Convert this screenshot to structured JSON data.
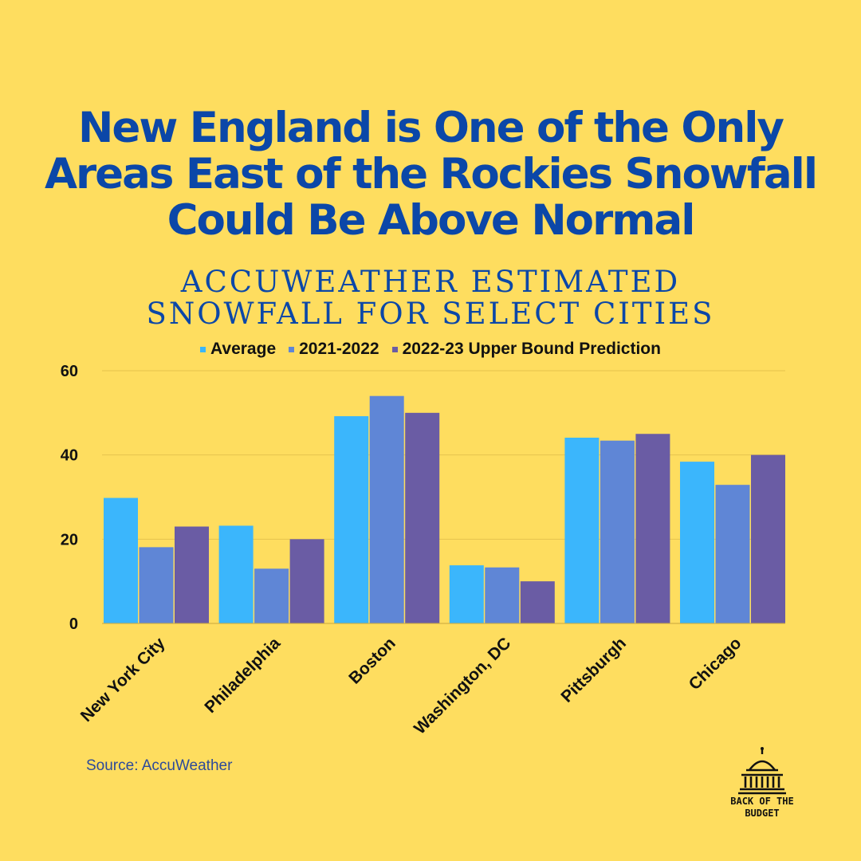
{
  "title_lines": [
    "New England is One of the Only",
    "Areas East of the Rockies Snowfall",
    "Could Be Above Normal"
  ],
  "subtitle_lines": [
    "ACCUWEATHER ESTIMATED",
    "SNOWFALL FOR SELECT CITIES"
  ],
  "source": "Source: AccuWeather",
  "logo": {
    "icon": "capitol-dome-icon",
    "lines": [
      "BACK OF THE",
      "BUDGET"
    ]
  },
  "colors": {
    "background": "#fedd5f",
    "title": "#0b47a8",
    "gridline": "#e6c24e"
  },
  "chart_data": {
    "type": "bar",
    "categories": [
      "New York City",
      "Philadelphia",
      "Boston",
      "Washington, DC",
      "Pittsburgh",
      "Chicago"
    ],
    "series": [
      {
        "name": "Average",
        "color": "#3bb6fc",
        "values": [
          29.8,
          23.2,
          49.2,
          13.8,
          44.1,
          38.4
        ]
      },
      {
        "name": "2021-2022",
        "color": "#5f86d6",
        "values": [
          18.1,
          13.0,
          54.0,
          13.3,
          43.4,
          32.9
        ]
      },
      {
        "name": "2022-23 Upper Bound Prediction",
        "color": "#6a5ca4",
        "values": [
          23.0,
          20.0,
          50.0,
          10.0,
          45.0,
          40.0
        ]
      }
    ],
    "ylim": [
      0,
      60
    ],
    "yticks": [
      0,
      20,
      40,
      60
    ],
    "grid": true,
    "legend_position": "top"
  }
}
